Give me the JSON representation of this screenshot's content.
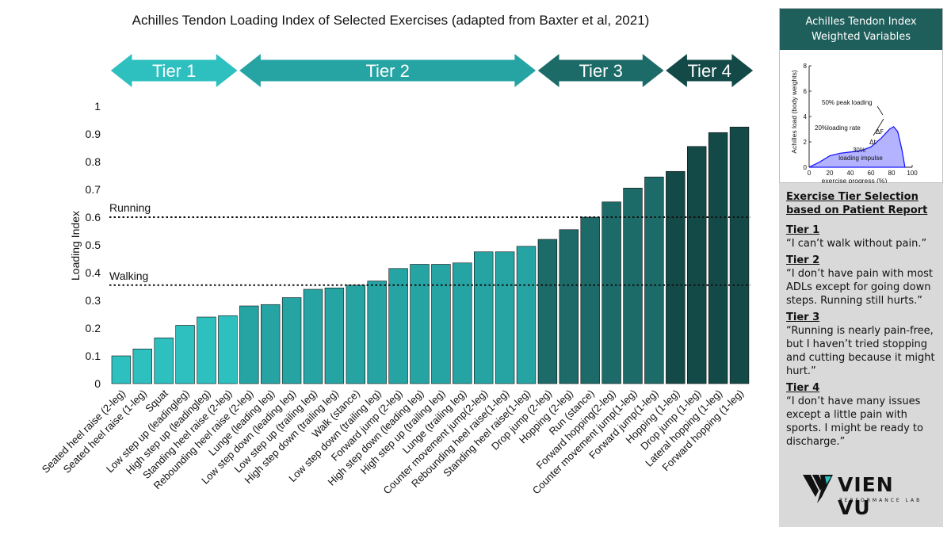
{
  "chart_data": {
    "type": "bar",
    "title": "Achilles Tendon Loading Index of Selected Exercises (adapted from Baxter et al, 2021)",
    "ylabel": "Loading Index",
    "xlabel": "",
    "ylim": [
      0,
      1
    ],
    "yticks": [
      "0",
      "0.1",
      "0.2",
      "0.3",
      "0.4",
      "0.5",
      "0.6",
      "0.7",
      "0.8",
      "0.9",
      "1"
    ],
    "categories": [
      "Seated heel raise (2-leg)",
      "Seated heel raise (1-leg)",
      "Squat",
      "Low step up (leadingleg)",
      "High step up (leadingleg)",
      "Standing heel raise (2-leg)",
      "Rebounding heel raise (2-leg)",
      "Lunge (leading leg)",
      "Low step down (leading leg)",
      "Low step up (trailing leg)",
      "High step down (trailing leg)",
      "Walk (stance)",
      "Low step down (trailing leg)",
      "Forward jump (2-leg)",
      "High step down (leading leg)",
      "High step up (trailing leg)",
      "Lunge (trailing leg)",
      "Counter movement jump(2-leg)",
      "Rebounding heel raise(1-leg)",
      "Standing heel raise(1-leg)",
      "Drop jump (2-leg)",
      "Hopping (2-leg)",
      "Run (stance)",
      "Forward hopping(2-leg)",
      "Counter movement jump(1-leg)",
      "Forward jump(1-leg)",
      "Hopping (1-leg)",
      "Drop jump (1-leg)",
      "Lateral hopping (1-leg)",
      "Forward hopping (1-leg)"
    ],
    "values": [
      0.1,
      0.125,
      0.165,
      0.21,
      0.24,
      0.245,
      0.28,
      0.285,
      0.31,
      0.34,
      0.345,
      0.355,
      0.37,
      0.415,
      0.43,
      0.43,
      0.435,
      0.475,
      0.475,
      0.495,
      0.52,
      0.555,
      0.6,
      0.655,
      0.705,
      0.745,
      0.765,
      0.855,
      0.905,
      0.925
    ],
    "tiers": [
      {
        "label": "Tier 1",
        "first": 0,
        "last": 5,
        "color": "#2ebfbf"
      },
      {
        "label": "Tier 2",
        "first": 6,
        "last": 19,
        "color": "#26a3a3"
      },
      {
        "label": "Tier 3",
        "first": 20,
        "last": 25,
        "color": "#1c6b69"
      },
      {
        "label": "Tier 4",
        "first": 26,
        "last": 29,
        "color": "#134a48"
      }
    ],
    "reference_lines": [
      {
        "label": "Running",
        "value": 0.6
      },
      {
        "label": "Walking",
        "value": 0.355
      }
    ],
    "grid": false,
    "legend": "none"
  },
  "inset": {
    "header_line1": "Achilles Tendon Index",
    "header_line2": "Weighted Variables",
    "ylabel": "Achilles load (body weights)",
    "xlabel": "exercise progress (%)",
    "xticks": [
      "0",
      "20",
      "40",
      "60",
      "80",
      "100"
    ],
    "yticks": [
      "0",
      "2",
      "4",
      "6",
      "8"
    ],
    "annotation_peak": "50% peak loading",
    "annotation_rate": "20%loading rate",
    "annotation_impulse_pct": "30%",
    "annotation_impulse": "loading impulse",
    "delta_f": "ΔF",
    "delta_t": "Δt",
    "curve": {
      "x": [
        0,
        10,
        20,
        30,
        40,
        50,
        60,
        70,
        78,
        82,
        86,
        90,
        93
      ],
      "y": [
        0,
        0.4,
        0.9,
        1.1,
        1.2,
        1.3,
        1.6,
        2.3,
        3.0,
        3.2,
        2.8,
        1.4,
        0
      ]
    },
    "fill_color": "#b3b3ff",
    "line_color": "#1a1aff"
  },
  "panel": {
    "heading_line1": "Exercise Tier Selection",
    "heading_line2": "based on Patient Report",
    "tiers": [
      {
        "name": "Tier 1",
        "quote": "“I can’t walk without pain.”"
      },
      {
        "name": "Tier 2",
        "quote": "“I don’t have pain with most ADLs except for going down steps. Running still hurts.”"
      },
      {
        "name": "Tier 3",
        "quote": "“Running is nearly pain-free, but I haven’t tried stopping and cutting because it might hurt.”"
      },
      {
        "name": "Tier 4",
        "quote": "“I don’t have many issues except a little pain with sports. I might be ready to discharge.”"
      }
    ]
  },
  "logo": {
    "name": "VIEN VU",
    "subtitle": "PERFORMANCE LAB"
  }
}
